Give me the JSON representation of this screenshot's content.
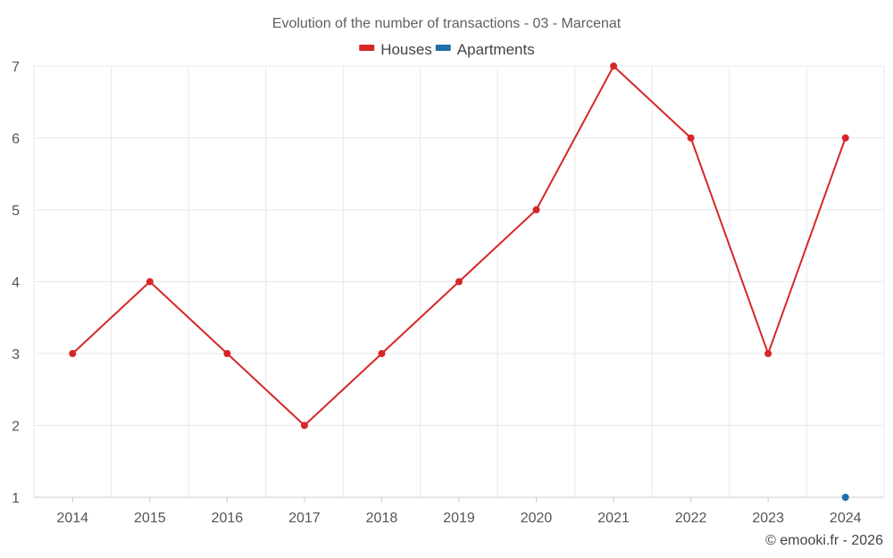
{
  "chart_data": {
    "type": "line",
    "title": "Evolution of the number of transactions - 03 - Marcenat",
    "xlabel": "",
    "ylabel": "",
    "x": [
      "2014",
      "2015",
      "2016",
      "2017",
      "2018",
      "2019",
      "2020",
      "2021",
      "2022",
      "2023",
      "2024"
    ],
    "ylim": [
      1,
      7
    ],
    "yticks": [
      1,
      2,
      3,
      4,
      5,
      6,
      7
    ],
    "grid": true,
    "legend_position": "top-center",
    "series": [
      {
        "name": "Houses",
        "color": "#d62728",
        "values": [
          3,
          4,
          3,
          2,
          3,
          4,
          5,
          7,
          6,
          3,
          6
        ]
      },
      {
        "name": "Apartments",
        "color": "#1f6fa8",
        "values": [
          null,
          null,
          null,
          null,
          null,
          null,
          null,
          null,
          null,
          null,
          1
        ]
      }
    ]
  },
  "credit": "© emooki.fr - 2026"
}
